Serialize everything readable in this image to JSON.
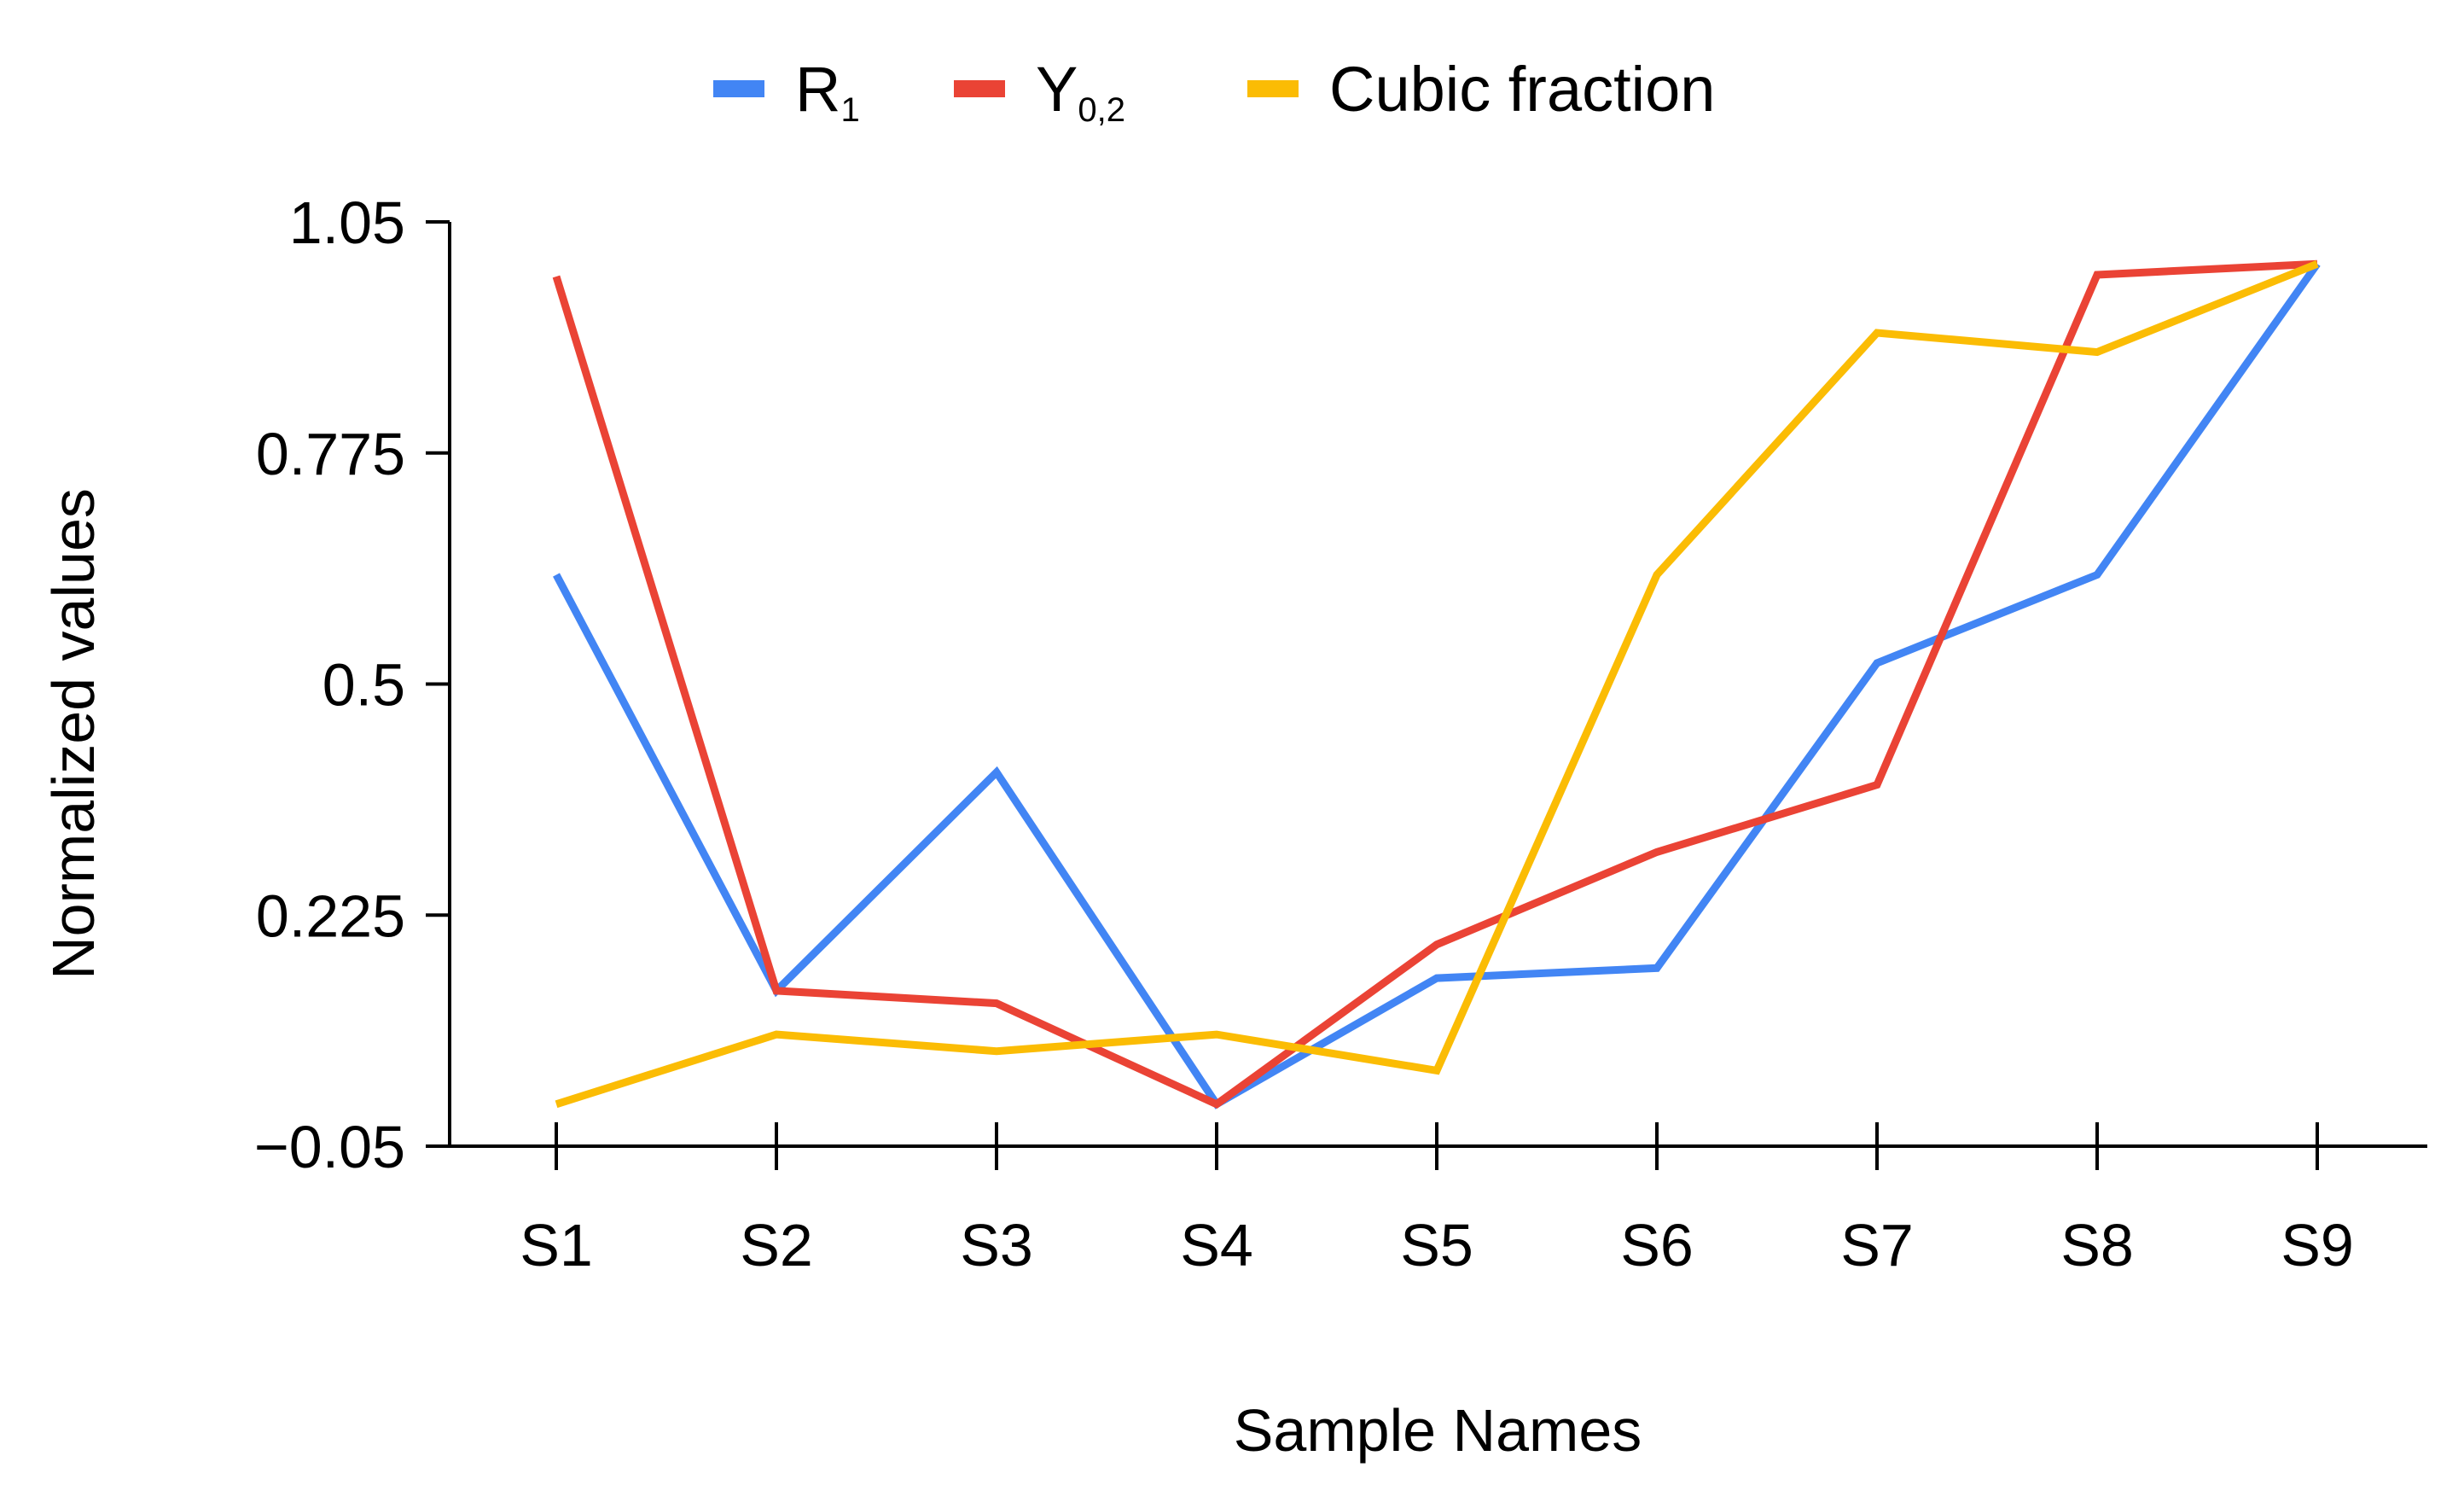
{
  "chart_data": {
    "type": "line",
    "title": "",
    "xlabel": "Sample Names",
    "ylabel": "Normalized values",
    "categories": [
      "S1",
      "S2",
      "S3",
      "S4",
      "S5",
      "S6",
      "S7",
      "S8",
      "S9"
    ],
    "ylim": [
      -0.05,
      1.05
    ],
    "yticks": [
      1.05,
      0.775,
      0.5,
      0.225,
      -0.05
    ],
    "ytick_labels": [
      "1.05",
      "0.775",
      "0.5",
      "0.225",
      "−0.05"
    ],
    "grid": false,
    "legend_position": "top-center",
    "series": [
      {
        "name": "R",
        "name_sub": "1",
        "color": "#4285F4",
        "values": [
          0.63,
          0.135,
          0.395,
          0.0,
          0.15,
          0.162,
          0.525,
          0.63,
          1.0
        ]
      },
      {
        "name": "Y",
        "name_sub": "0,2",
        "color": "#EA4335",
        "values": [
          0.985,
          0.135,
          0.12,
          0.0,
          0.19,
          0.3,
          0.38,
          0.987,
          1.0
        ]
      },
      {
        "name": "Cubic fraction",
        "name_sub": "",
        "color": "#FBBC04",
        "values": [
          0.0,
          0.083,
          0.063,
          0.083,
          0.04,
          0.63,
          0.918,
          0.895,
          1.0
        ]
      }
    ]
  }
}
